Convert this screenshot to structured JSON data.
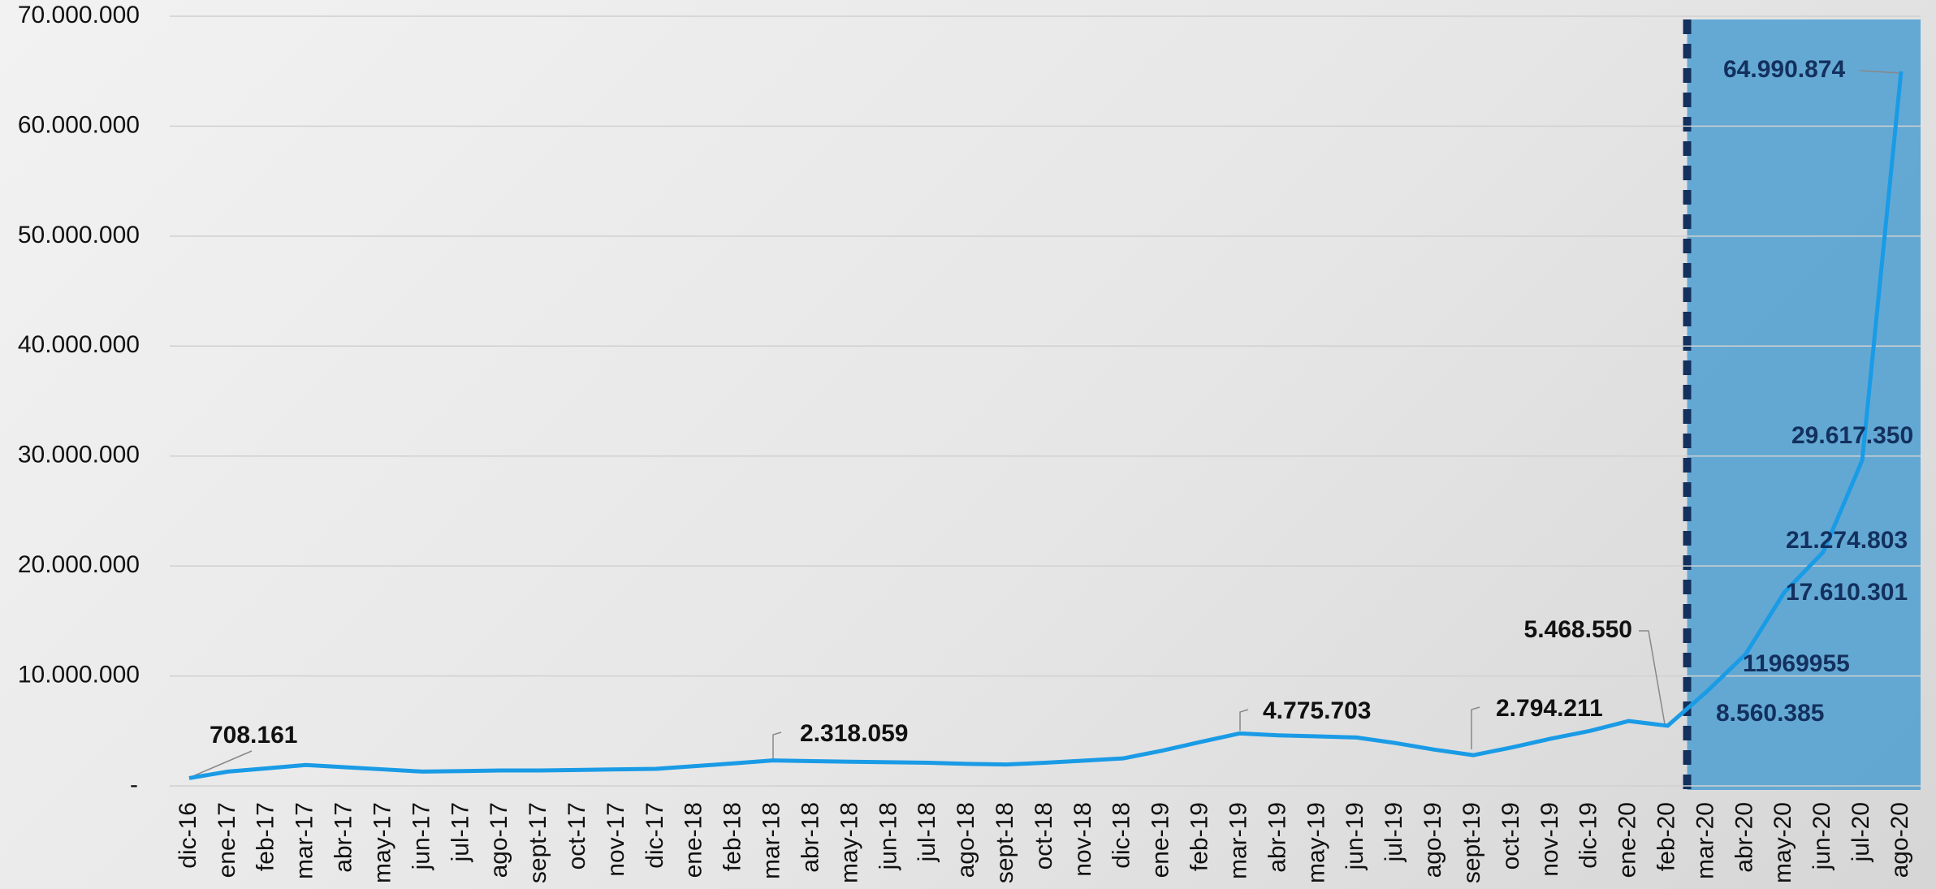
{
  "chart_data": {
    "type": "line",
    "categories": [
      "dic-16",
      "ene-17",
      "feb-17",
      "mar-17",
      "abr-17",
      "may-17",
      "jun-17",
      "jul-17",
      "ago-17",
      "sept-17",
      "oct-17",
      "nov-17",
      "dic-17",
      "ene-18",
      "feb-18",
      "mar-18",
      "abr-18",
      "may-18",
      "jun-18",
      "jul-18",
      "ago-18",
      "sept-18",
      "oct-18",
      "nov-18",
      "dic-18",
      "ene-19",
      "feb-19",
      "mar-19",
      "abr-19",
      "may-19",
      "jun-19",
      "jul-19",
      "ago-19",
      "sept-19",
      "oct-19",
      "nov-19",
      "dic-19",
      "ene-20",
      "feb-20",
      "mar-20",
      "abr-20",
      "may-20",
      "jun-20",
      "jul-20",
      "ago-20"
    ],
    "series": [
      {
        "name": null,
        "color": "#1a9be6",
        "values": [
          708161,
          1300000,
          1600000,
          1900000,
          1700000,
          1500000,
          1300000,
          1350000,
          1400000,
          1400000,
          1450000,
          1500000,
          1550000,
          1800000,
          2050000,
          2318059,
          2250000,
          2200000,
          2150000,
          2100000,
          2000000,
          1950000,
          2100000,
          2300000,
          2500000,
          3200000,
          4000000,
          4775703,
          4600000,
          4500000,
          4400000,
          3900000,
          3300000,
          2794211,
          3500000,
          4300000,
          5000000,
          5900000,
          5468550,
          8560385,
          11969955,
          17610301,
          21274803,
          29617350,
          64990874
        ],
        "value_labels": [
          "708.161",
          null,
          null,
          null,
          null,
          null,
          null,
          null,
          null,
          null,
          null,
          null,
          null,
          null,
          null,
          "2.318.059",
          null,
          null,
          null,
          null,
          null,
          null,
          null,
          null,
          null,
          null,
          null,
          "4.775.703",
          null,
          null,
          null,
          null,
          null,
          "2.794.211",
          null,
          null,
          null,
          null,
          "5.468.550",
          "8.560.385",
          "11969955",
          "17.610.301",
          "21.274.803",
          "29.617.350",
          "64.990.874"
        ]
      }
    ],
    "ylim": [
      0,
      70000000
    ],
    "yticks": [
      {
        "value": 0,
        "label": "-"
      },
      {
        "value": 10000000,
        "label": "10.000.000"
      },
      {
        "value": 20000000,
        "label": "20.000.000"
      },
      {
        "value": 30000000,
        "label": "30.000.000"
      },
      {
        "value": 40000000,
        "label": "40.000.000"
      },
      {
        "value": 50000000,
        "label": "50.000.000"
      },
      {
        "value": 60000000,
        "label": "60.000.000"
      },
      {
        "value": 70000000,
        "label": "70.000.000"
      }
    ],
    "grid": true,
    "highlight": {
      "from": "mar-20",
      "to": "ago-20",
      "color": "#4d9fd1",
      "border_color": "#13305e"
    }
  }
}
